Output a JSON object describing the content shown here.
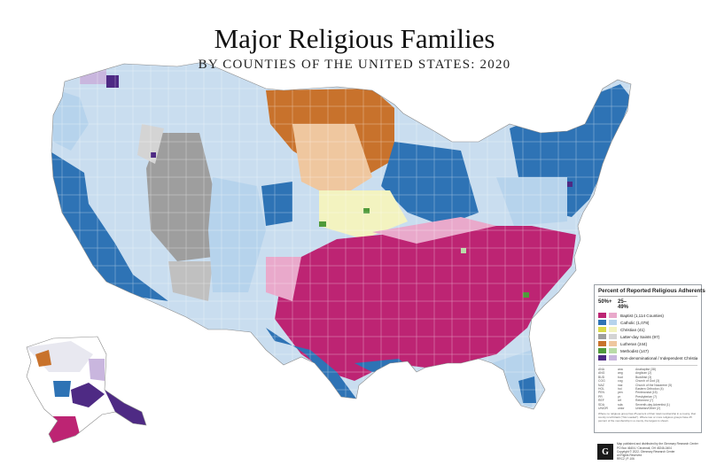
{
  "title": "Major Religious Families",
  "subtitle": "BY COUNTIES OF THE UNITED STATES: 2020",
  "colors": {
    "baptist_50": "#bd2473",
    "baptist_25": "#e9a9cb",
    "catholic_50": "#2e73b5",
    "catholic_25": "#b6d3ec",
    "christian_50": "#d9d94a",
    "christian_25": "#f3f3c0",
    "lds_50": "#9e9e9e",
    "lds_25": "#d4d4d4",
    "lutheran_50": "#c8722c",
    "lutheran_25": "#efc79f",
    "methodist_50": "#4f9a3a",
    "methodist_25": "#b9dca8",
    "nondenominational_50": "#4e2a84",
    "nondenominational_25": "#c9b6de",
    "water": "#ffffff",
    "border": "#ffffff"
  },
  "legend": {
    "title": "Percent of Reported Religious Adherents",
    "col_high": "50%+",
    "col_mid": "25–49%",
    "items": [
      {
        "label": "Baptist (1,114 Counties)"
      },
      {
        "label": "Catholic (1,078)"
      },
      {
        "label": "Christian (41)"
      },
      {
        "label": "Latter-day Saints (97)"
      },
      {
        "label": "Lutheran (244)"
      },
      {
        "label": "Methodist (147)"
      },
      {
        "label": "Non-denominational / Independent Christian (186)"
      }
    ],
    "abbreviations": [
      [
        "ANA",
        "ana",
        "Anabaptist (38)"
      ],
      [
        "ANG",
        "ang",
        "Anglican (2)"
      ],
      [
        "BUD",
        "bud",
        "Buddhist (3)"
      ],
      [
        "COG",
        "cog",
        "Church of God (3)"
      ],
      [
        "NAZ",
        "naz",
        "Church of the Nazarene (5)"
      ],
      [
        "HOL",
        "hol",
        "Eastern Orthodox (4)"
      ],
      [
        "PEN",
        "pen",
        "Pentecostal (15)"
      ],
      [
        "PR",
        "pr",
        "Presbyterian (7)"
      ],
      [
        "REF",
        "ref",
        "Reformed (7)"
      ],
      [
        "SDA",
        "sda",
        "Seventh-day Adventist (1)"
      ],
      [
        "UNIOR",
        "unior",
        "Unitarian/Other (2)"
      ]
    ],
    "note": "Where no religious group has 25 percent of their total membership in a county, that county is left blank (\"Not Loaded\"). Where two or more religious groups have 25 percent of the membership in a county, the largest is shown."
  },
  "publisher": {
    "lines": [
      "Map published and distributed by the Glenmary Research Center",
      "PO Box 46404 / Cincinnati, OH 45246-0404",
      "Copyright © 2022, Glenmary Research Center",
      "All Rights Reserved"
    ],
    "code": "RRC2 | P-106"
  }
}
